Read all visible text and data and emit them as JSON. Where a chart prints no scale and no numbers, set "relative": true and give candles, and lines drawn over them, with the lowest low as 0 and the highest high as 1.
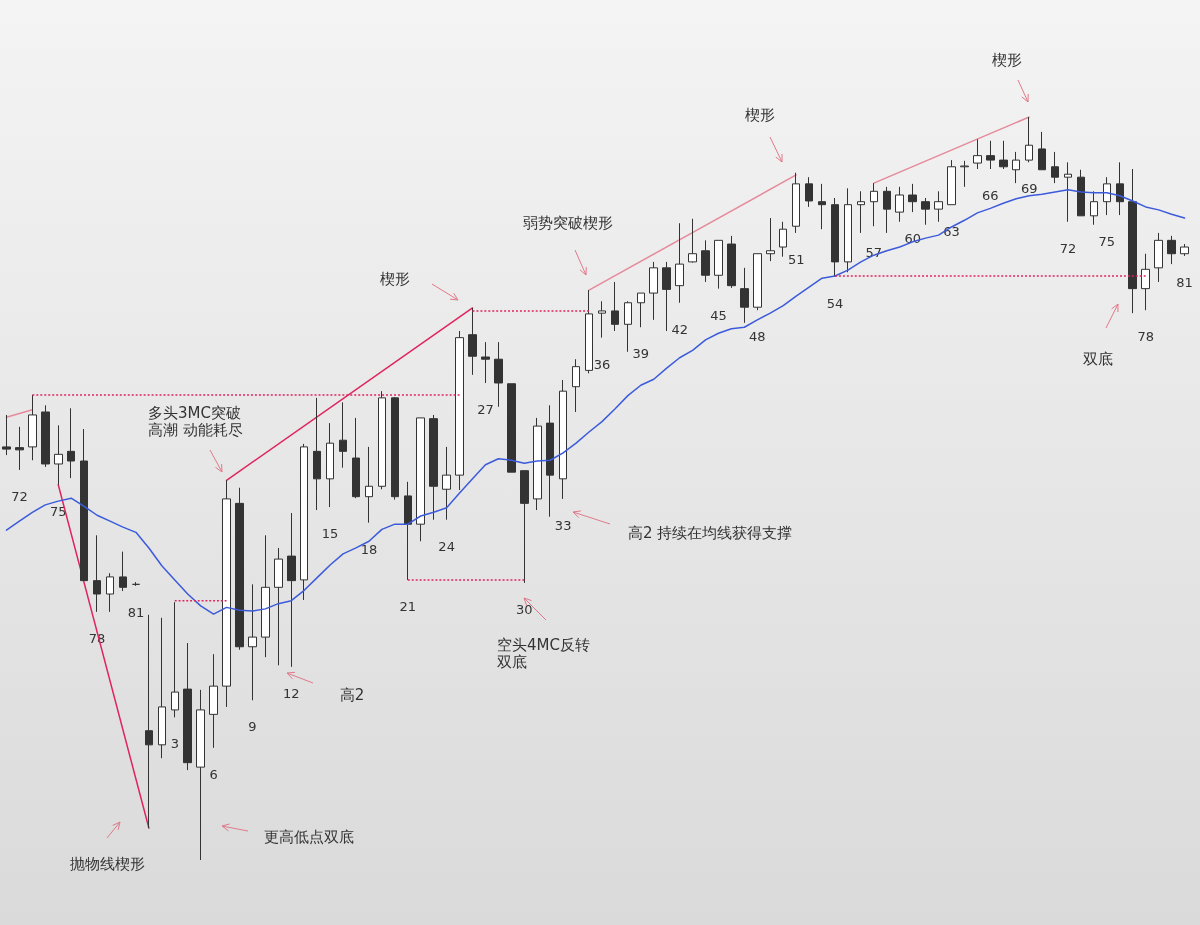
{
  "chart_data": {
    "type": "candlestick",
    "relative": true,
    "categories": [
      null,
      "72",
      null,
      null,
      "75",
      null,
      null,
      "78",
      null,
      null,
      "81",
      null,
      null,
      "3",
      null,
      null,
      "6",
      null,
      null,
      "9",
      null,
      null,
      "12",
      null,
      null,
      "15",
      null,
      null,
      "18",
      null,
      null,
      "21",
      null,
      null,
      "24",
      null,
      null,
      "27",
      null,
      null,
      "30",
      null,
      null,
      "33",
      null,
      null,
      "36",
      null,
      null,
      "39",
      null,
      null,
      "42",
      null,
      null,
      "45",
      null,
      null,
      "48",
      null,
      null,
      "51",
      null,
      null,
      "54",
      null,
      null,
      "57",
      null,
      null,
      "60",
      null,
      null,
      "63",
      null,
      null,
      "66",
      null,
      null,
      "69",
      null,
      null,
      "72",
      null,
      null,
      "75",
      null,
      null,
      "78",
      null,
      null,
      "81"
    ],
    "series": [
      {
        "color": "#333333",
        "ohlc": [
          [
            0.556,
            0.599,
            0.545,
            0.553
          ],
          [
            0.555,
            0.583,
            0.525,
            0.552
          ],
          [
            0.556,
            0.626,
            0.538,
            0.599
          ],
          [
            0.603,
            0.612,
            0.529,
            0.533
          ],
          [
            0.533,
            0.585,
            0.505,
            0.546
          ],
          [
            0.55,
            0.608,
            0.514,
            0.537
          ],
          [
            0.537,
            0.58,
            0.376,
            0.376
          ],
          [
            0.376,
            0.437,
            0.334,
            0.358
          ],
          [
            0.358,
            0.386,
            0.334,
            0.381
          ],
          [
            0.381,
            0.415,
            0.362,
            0.367
          ],
          [
            0.371,
            0.374,
            0.369,
            0.371
          ],
          [
            0.174,
            0.33,
            0.043,
            0.155
          ],
          [
            0.155,
            0.326,
            0.137,
            0.206
          ],
          [
            0.202,
            0.347,
            0.192,
            0.226
          ],
          [
            0.23,
            0.292,
            0.121,
            0.131
          ],
          [
            0.125,
            0.229,
            0,
            0.202
          ],
          [
            0.196,
            0.277,
            0.151,
            0.234
          ],
          [
            0.234,
            0.511,
            0.206,
            0.486
          ],
          [
            0.48,
            0.501,
            0.283,
            0.287
          ],
          [
            0.287,
            0.371,
            0.215,
            0.3
          ],
          [
            0.3,
            0.437,
            0.273,
            0.367
          ],
          [
            0.367,
            0.42,
            0.262,
            0.405
          ],
          [
            0.409,
            0.467,
            0.26,
            0.376
          ],
          [
            0.377,
            0.56,
            0.35,
            0.556
          ],
          [
            0.55,
            0.622,
            0.471,
            0.513
          ],
          [
            0.513,
            0.588,
            0.475,
            0.561
          ],
          [
            0.565,
            0.616,
            0.528,
            0.55
          ],
          [
            0.541,
            0.595,
            0.487,
            0.489
          ],
          [
            0.489,
            0.556,
            0.454,
            0.503
          ],
          [
            0.503,
            0.631,
            0.499,
            0.622
          ],
          [
            0.622,
            0.623,
            0.485,
            0.489
          ],
          [
            0.49,
            0.509,
            0.377,
            0.452
          ],
          [
            0.452,
            0.595,
            0.429,
            0.595
          ],
          [
            0.594,
            0.599,
            0.458,
            0.503
          ],
          [
            0.499,
            0.556,
            0.458,
            0.518
          ],
          [
            0.518,
            0.712,
            0.498,
            0.703
          ],
          [
            0.707,
            0.743,
            0.653,
            0.678
          ],
          [
            0.677,
            0.697,
            0.642,
            0.674
          ],
          [
            0.674,
            0.697,
            0.61,
            0.642
          ],
          [
            0.641,
            0.641,
            0.522,
            0.522
          ],
          [
            0.524,
            0.524,
            0.373,
            0.48
          ],
          [
            0.486,
            0.595,
            0.471,
            0.584
          ],
          [
            0.588,
            0.612,
            0.462,
            0.518
          ],
          [
            0.513,
            0.646,
            0.486,
            0.631
          ],
          [
            0.637,
            0.674,
            0.603,
            0.664
          ],
          [
            0.659,
            0.767,
            0.655,
            0.735
          ],
          [
            0.736,
            0.752,
            0.703,
            0.739
          ],
          [
            0.739,
            0.778,
            0.712,
            0.721
          ],
          [
            0.721,
            0.752,
            0.684,
            0.75
          ],
          [
            0.75,
            0.763,
            0.717,
            0.763
          ],
          [
            0.763,
            0.805,
            0.727,
            0.797
          ],
          [
            0.797,
            0.805,
            0.712,
            0.768
          ],
          [
            0.773,
            0.857,
            0.75,
            0.802
          ],
          [
            0.805,
            0.863,
            0.804,
            0.816
          ],
          [
            0.82,
            0.834,
            0.778,
            0.787
          ],
          [
            0.787,
            0.834,
            0.769,
            0.834
          ],
          [
            0.829,
            0.84,
            0.77,
            0.773
          ],
          [
            0.769,
            0.797,
            0.723,
            0.744
          ],
          [
            0.744,
            0.816,
            0.74,
            0.816
          ],
          [
            0.816,
            0.864,
            0.806,
            0.82
          ],
          [
            0.825,
            0.859,
            0.812,
            0.849
          ],
          [
            0.853,
            0.925,
            0.844,
            0.91
          ],
          [
            0.91,
            0.919,
            0.879,
            0.887
          ],
          [
            0.886,
            0.91,
            0.849,
            0.882
          ],
          [
            0.882,
            0.891,
            0.785,
            0.805
          ],
          [
            0.805,
            0.904,
            0.791,
            0.882
          ],
          [
            0.882,
            0.9,
            0.844,
            0.886
          ],
          [
            0.886,
            0.911,
            0.853,
            0.9
          ],
          [
            0.9,
            0.906,
            0.844,
            0.876
          ],
          [
            0.872,
            0.906,
            0.859,
            0.895
          ],
          [
            0.895,
            0.91,
            0.872,
            0.886
          ],
          [
            0.886,
            0.891,
            0.855,
            0.876
          ],
          [
            0.876,
            0.9,
            0.859,
            0.886
          ],
          [
            0.882,
            0.942,
            0.882,
            0.933
          ],
          [
            0.933,
            0.941,
            0.906,
            0.934
          ],
          [
            0.938,
            0.97,
            0.93,
            0.948
          ],
          [
            0.948,
            0.968,
            0.93,
            0.942
          ],
          [
            0.942,
            0.968,
            0.93,
            0.933
          ],
          [
            0.929,
            0.953,
            0.911,
            0.942
          ],
          [
            0.942,
            1,
            0.939,
            0.962
          ],
          [
            0.957,
            0.98,
            0.929,
            0.929
          ],
          [
            0.933,
            0.953,
            0.911,
            0.919
          ],
          [
            0.919,
            0.939,
            0.859,
            0.923
          ],
          [
            0.919,
            0.929,
            0.867,
            0.867
          ],
          [
            0.867,
            0.9,
            0.855,
            0.886
          ],
          [
            0.886,
            0.919,
            0.868,
            0.91
          ],
          [
            0.91,
            0.939,
            0.868,
            0.886
          ],
          [
            0.886,
            0.93,
            0.736,
            0.769
          ],
          [
            0.769,
            0.816,
            0.74,
            0.795
          ],
          [
            0.797,
            0.844,
            0.778,
            0.834
          ],
          [
            0.834,
            0.84,
            0.802,
            0.816
          ],
          [
            0.816,
            0.829,
            0.813,
            0.825
          ]
        ]
      },
      {
        "type": "line",
        "color": "#3b5bdb",
        "values": [
          0.444,
          0.456,
          0.468,
          0.478,
          0.483,
          0.487,
          0.476,
          0.464,
          0.456,
          0.448,
          0.441,
          0.42,
          0.396,
          0.377,
          0.358,
          0.342,
          0.331,
          0.34,
          0.336,
          0.335,
          0.338,
          0.345,
          0.349,
          0.363,
          0.38,
          0.397,
          0.412,
          0.42,
          0.429,
          0.445,
          0.452,
          0.452,
          0.463,
          0.468,
          0.474,
          0.494,
          0.513,
          0.532,
          0.54,
          0.538,
          0.534,
          0.537,
          0.538,
          0.548,
          0.561,
          0.576,
          0.59,
          0.607,
          0.625,
          0.639,
          0.647,
          0.662,
          0.676,
          0.686,
          0.7,
          0.709,
          0.715,
          0.717,
          0.727,
          0.736,
          0.746,
          0.759,
          0.771,
          0.783,
          0.786,
          0.794,
          0.805,
          0.814,
          0.82,
          0.825,
          0.832,
          0.837,
          0.841,
          0.852,
          0.861,
          0.871,
          0.877,
          0.884,
          0.89,
          0.894,
          0.896,
          0.899,
          0.902,
          0.899,
          0.898,
          0.898,
          0.894,
          0.887,
          0.879,
          0.875,
          0.869,
          0.864
        ]
      },
      {
        "type": "line",
        "color": "#e0245e",
        "values": [
          null,
          null,
          null,
          null,
          0.505,
          null,
          null,
          null,
          null,
          null,
          null,
          0.043,
          null,
          null,
          null,
          null,
          null,
          null,
          null,
          null,
          null,
          null,
          null,
          null,
          null,
          null,
          null,
          null,
          null,
          null,
          null,
          null,
          null,
          null,
          null,
          null,
          null,
          null,
          null,
          null,
          null,
          null,
          null,
          null,
          null,
          null,
          null,
          null,
          null,
          null,
          null,
          null,
          null,
          null,
          null,
          null,
          null,
          null,
          null,
          null,
          null,
          null,
          null,
          null,
          null,
          null,
          null,
          null,
          null,
          null,
          null,
          null,
          null,
          null,
          null,
          null,
          null,
          null,
          null,
          null,
          null,
          null,
          null,
          null,
          null,
          null,
          null,
          null,
          null,
          null,
          null,
          null
        ]
      },
      {
        "type": "line",
        "color": "#e0245e",
        "values": [
          null,
          null,
          null,
          null,
          null,
          null,
          null,
          null,
          null,
          null,
          null,
          null,
          null,
          null,
          null,
          null,
          null,
          0.511,
          null,
          null,
          null,
          null,
          null,
          null,
          null,
          null,
          null,
          null,
          null,
          null,
          null,
          null,
          null,
          null,
          null,
          null,
          0.743,
          null,
          null,
          null,
          null,
          null,
          null,
          null,
          null,
          null,
          null,
          null,
          null,
          null,
          null,
          null,
          null,
          null,
          null,
          null,
          null,
          null,
          null,
          null,
          null,
          null,
          null,
          null,
          null,
          null,
          null,
          null,
          null,
          null,
          null,
          null,
          null,
          null,
          null,
          null,
          null,
          null,
          null,
          null,
          null,
          null,
          null,
          null,
          null,
          null,
          null,
          null,
          null,
          null,
          null,
          null
        ]
      },
      {
        "type": "line",
        "color": "#e58a9b",
        "values": [
          null,
          null,
          null,
          null,
          null,
          null,
          null,
          null,
          null,
          null,
          null,
          null,
          null,
          null,
          null,
          null,
          null,
          null,
          null,
          null,
          null,
          null,
          null,
          null,
          null,
          null,
          null,
          null,
          null,
          null,
          null,
          null,
          null,
          null,
          null,
          null,
          null,
          null,
          null,
          null,
          null,
          null,
          null,
          null,
          null,
          0.767,
          null,
          null,
          null,
          null,
          null,
          null,
          null,
          null,
          null,
          null,
          null,
          null,
          null,
          null,
          null,
          0.922,
          null,
          null,
          null,
          null,
          null,
          null,
          null,
          null,
          null,
          null,
          null,
          null,
          null,
          null,
          null,
          null,
          null,
          null,
          null,
          null,
          null,
          null,
          null,
          null,
          null,
          null,
          null,
          null,
          null,
          null
        ]
      },
      {
        "type": "line",
        "color": "#e58a9b",
        "values": [
          null,
          null,
          null,
          null,
          null,
          null,
          null,
          null,
          null,
          null,
          null,
          null,
          null,
          null,
          null,
          null,
          null,
          null,
          null,
          null,
          null,
          null,
          null,
          null,
          null,
          null,
          null,
          null,
          null,
          null,
          null,
          null,
          null,
          null,
          null,
          null,
          null,
          null,
          null,
          null,
          null,
          null,
          null,
          null,
          null,
          null,
          null,
          null,
          null,
          null,
          null,
          null,
          null,
          null,
          null,
          null,
          null,
          null,
          null,
          null,
          null,
          null,
          null,
          null,
          null,
          null,
          null,
          0.911,
          null,
          null,
          null,
          null,
          null,
          null,
          null,
          null,
          null,
          null,
          null,
          1,
          null,
          null,
          null,
          null,
          null,
          null,
          null,
          null,
          null,
          null,
          null,
          null
        ]
      },
      {
        "type": "line",
        "color": "#e58a9b",
        "values": [
          0.596,
          null,
          0.606,
          null,
          null,
          null,
          null,
          null,
          null,
          null,
          null,
          null,
          null,
          null,
          null,
          null,
          null,
          null,
          null,
          null,
          null,
          null,
          null,
          null,
          null,
          null,
          null,
          null,
          null,
          null,
          null,
          null,
          null,
          null,
          null,
          null,
          null,
          null,
          null,
          null,
          null,
          null,
          null,
          null,
          null,
          null,
          null,
          null,
          null,
          null,
          null,
          null,
          null,
          null,
          null,
          null,
          null,
          null,
          null,
          null,
          null,
          null,
          null,
          null,
          null,
          null,
          null,
          null,
          null,
          null,
          null,
          null,
          null,
          null,
          null,
          null,
          null,
          null,
          null,
          null,
          null,
          null,
          null,
          null,
          null,
          null,
          null,
          null,
          null,
          null,
          null,
          null
        ]
      },
      {
        "type": "line",
        "color": "#e0245e",
        "line_style": "dotted",
        "values": [
          null,
          null,
          0.626,
          null,
          null,
          null,
          null,
          null,
          null,
          null,
          null,
          null,
          null,
          null,
          null,
          null,
          null,
          null,
          null,
          null,
          null,
          null,
          null,
          null,
          null,
          null,
          null,
          null,
          null,
          null,
          null,
          null,
          null,
          null,
          null,
          0.626,
          null,
          null,
          null,
          null,
          null,
          null,
          null,
          null,
          null,
          null,
          null,
          null,
          null,
          null,
          null,
          null,
          null,
          null,
          null,
          null,
          null,
          null,
          null,
          null,
          null,
          null,
          null,
          null,
          null,
          null,
          null,
          null,
          null,
          null,
          null,
          null,
          null,
          null,
          null,
          null,
          null,
          null,
          null,
          null,
          null,
          null,
          null,
          null,
          null,
          null,
          null,
          null,
          null,
          null,
          null,
          null
        ]
      },
      {
        "type": "line",
        "color": "#e0245e",
        "line_style": "dotted",
        "values": [
          null,
          null,
          null,
          null,
          null,
          null,
          null,
          null,
          null,
          null,
          null,
          null,
          null,
          0.349,
          null,
          null,
          null,
          0.349,
          null,
          null,
          null,
          null,
          null,
          null,
          null,
          null,
          null,
          null,
          null,
          null,
          null,
          null,
          null,
          null,
          null,
          null,
          null,
          null,
          null,
          null,
          null,
          null,
          null,
          null,
          null,
          null,
          null,
          null,
          null,
          null,
          null,
          null,
          null,
          null,
          null,
          null,
          null,
          null,
          null,
          null,
          null,
          null,
          null,
          null,
          null,
          null,
          null,
          null,
          null,
          null,
          null,
          null,
          null,
          null,
          null,
          null,
          null,
          null,
          null,
          null,
          null,
          null,
          null,
          null,
          null,
          null,
          null,
          null,
          null,
          null,
          null,
          null
        ]
      },
      {
        "type": "line",
        "color": "#e0245e",
        "line_style": "dotted",
        "values": [
          null,
          null,
          null,
          null,
          null,
          null,
          null,
          null,
          null,
          null,
          null,
          null,
          null,
          null,
          null,
          null,
          null,
          null,
          null,
          null,
          null,
          null,
          null,
          null,
          null,
          null,
          null,
          null,
          null,
          null,
          null,
          0.377,
          null,
          null,
          null,
          null,
          null,
          null,
          null,
          null,
          0.377,
          null,
          null,
          null,
          null,
          null,
          null,
          null,
          null,
          null,
          null,
          null,
          null,
          null,
          null,
          null,
          null,
          null,
          null,
          null,
          null,
          null,
          null,
          null,
          null,
          null,
          null,
          null,
          null,
          null,
          null,
          null,
          null,
          null,
          null,
          null,
          null,
          null,
          null,
          null,
          null,
          null,
          null,
          null,
          null,
          null,
          null,
          null,
          null,
          null,
          null,
          null
        ]
      },
      {
        "type": "line",
        "color": "#e0245e",
        "line_style": "dotted",
        "values": [
          null,
          null,
          null,
          null,
          null,
          null,
          null,
          null,
          null,
          null,
          null,
          null,
          null,
          null,
          null,
          null,
          null,
          null,
          null,
          null,
          null,
          null,
          null,
          null,
          null,
          null,
          null,
          null,
          null,
          null,
          null,
          null,
          null,
          null,
          null,
          null,
          0.739,
          null,
          null,
          null,
          null,
          null,
          null,
          null,
          null,
          0.739,
          null,
          null,
          null,
          null,
          null,
          null,
          null,
          null,
          null,
          null,
          null,
          null,
          null,
          null,
          null,
          null,
          null,
          null,
          null,
          null,
          null,
          null,
          null,
          null,
          null,
          null,
          null,
          null,
          null,
          null,
          null,
          null,
          null,
          null,
          null,
          null,
          null,
          null,
          null,
          null,
          null,
          null,
          null,
          null,
          null,
          null
        ]
      },
      {
        "type": "line",
        "color": "#e0245e",
        "line_style": "dotted",
        "values": [
          null,
          null,
          null,
          null,
          null,
          null,
          null,
          null,
          null,
          null,
          null,
          null,
          null,
          null,
          null,
          null,
          null,
          null,
          null,
          null,
          null,
          null,
          null,
          null,
          null,
          null,
          null,
          null,
          null,
          null,
          null,
          null,
          null,
          null,
          null,
          null,
          null,
          null,
          null,
          null,
          null,
          null,
          null,
          null,
          null,
          null,
          null,
          null,
          null,
          null,
          null,
          null,
          null,
          null,
          null,
          null,
          null,
          null,
          null,
          null,
          null,
          null,
          null,
          null,
          0.786,
          null,
          null,
          null,
          null,
          null,
          null,
          null,
          null,
          null,
          null,
          null,
          null,
          null,
          null,
          null,
          null,
          null,
          null,
          null,
          null,
          null,
          null,
          null,
          0.786,
          null,
          null,
          null
        ]
      }
    ],
    "annotations": [
      "楔形",
      "弱势突破楔形",
      "楔形",
      "楔形",
      "多头3MC突破高潮 动能耗尽",
      "高2",
      "空头4MC反转双底",
      "高2 持续在均线获得支撑",
      "双底",
      "抛物线楔形",
      "更高低点双底"
    ]
  }
}
